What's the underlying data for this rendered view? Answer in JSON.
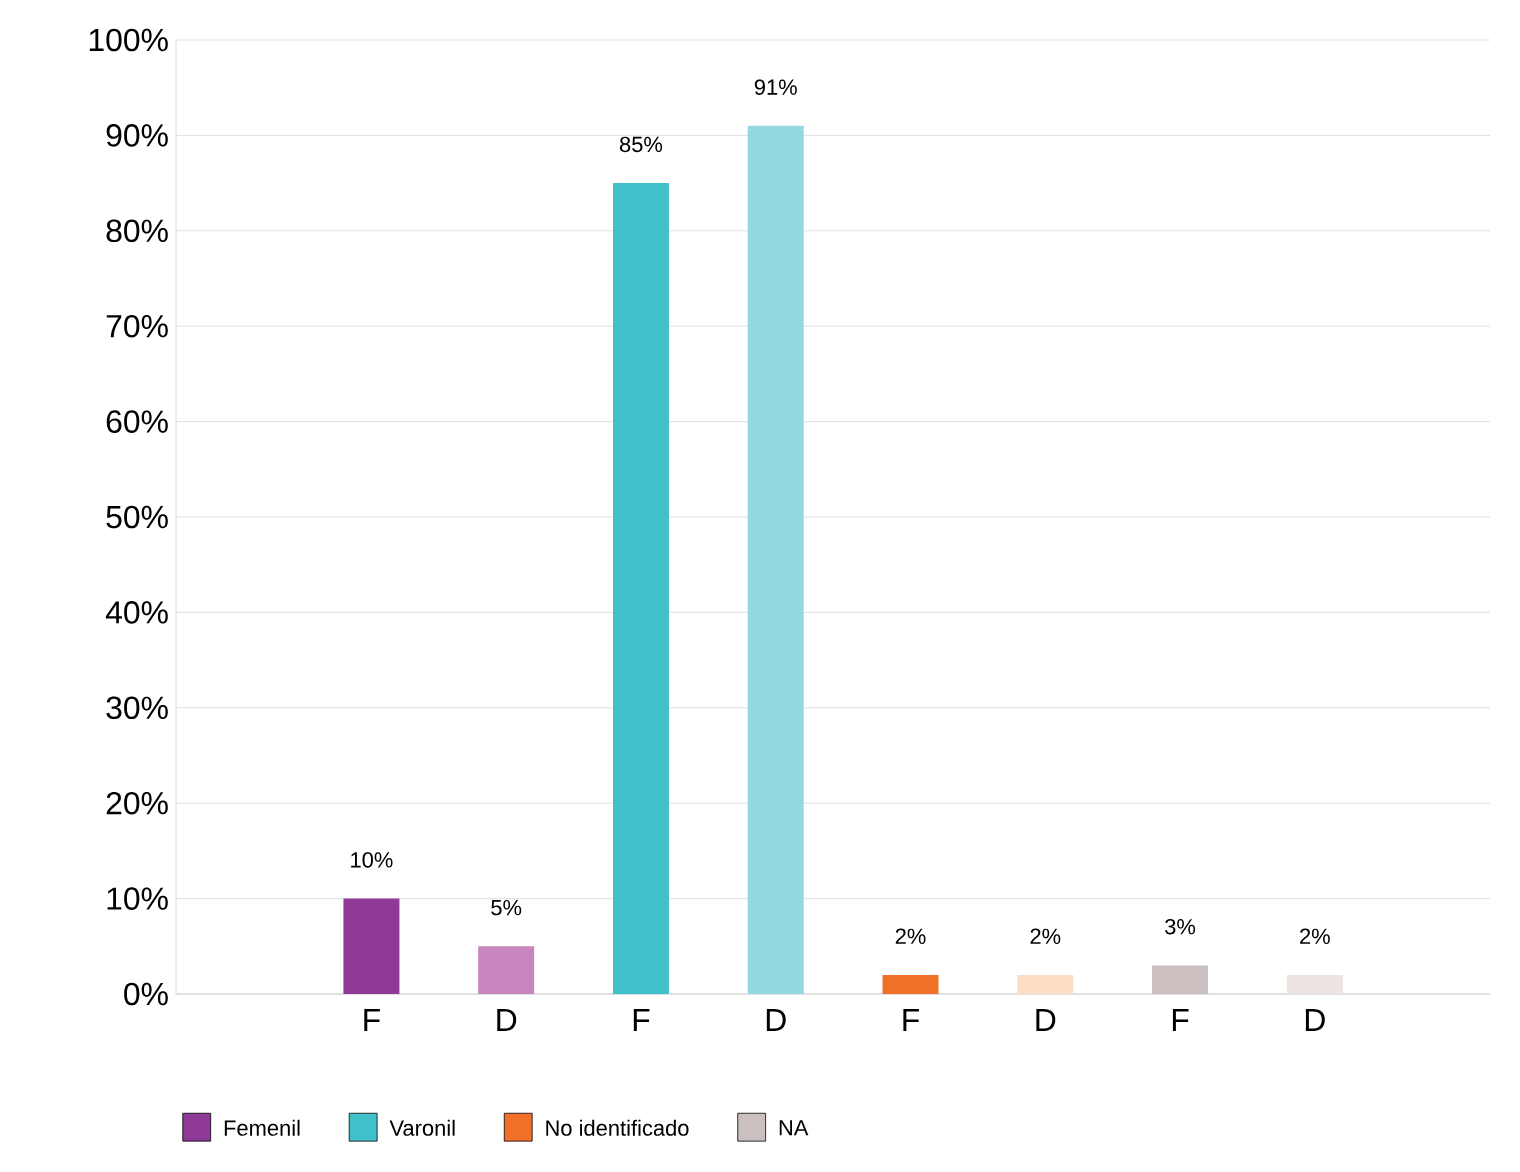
{
  "chart_data": {
    "type": "bar",
    "categories": [
      "F",
      "D",
      "F",
      "D",
      "F",
      "D",
      "F",
      "D"
    ],
    "series": [
      {
        "name": "Femenil",
        "color": "#8e3a96",
        "colors": [
          "#8e3a96",
          "#c985bd",
          null,
          null,
          null,
          null,
          null,
          null
        ],
        "values": [
          10,
          5,
          null,
          null,
          null,
          null,
          null,
          null
        ],
        "value_labels": [
          "10%",
          "5%",
          null,
          null,
          null,
          null,
          null,
          null
        ]
      },
      {
        "name": "Varonil",
        "color": "#40c1c9",
        "colors": [
          null,
          null,
          "#40c1c9",
          "#93d9df",
          null,
          null,
          null,
          null
        ],
        "values": [
          null,
          null,
          85,
          91,
          null,
          null,
          null,
          null
        ],
        "value_labels": [
          null,
          null,
          "85%",
          "91%",
          null,
          null,
          null,
          null
        ]
      },
      {
        "name": "No identificado",
        "color": "#f07028",
        "colors": [
          null,
          null,
          null,
          null,
          "#f07028",
          "#fddcc6",
          null,
          null
        ],
        "values": [
          null,
          null,
          null,
          null,
          2,
          2,
          null,
          null
        ],
        "value_labels": [
          null,
          null,
          null,
          null,
          "2%",
          "2%",
          null,
          null
        ]
      },
      {
        "name": "NA",
        "color": "#cbbfbf",
        "colors": [
          null,
          null,
          null,
          null,
          null,
          null,
          "#cbbfbf",
          "#ede5e3"
        ],
        "values": [
          null,
          null,
          null,
          null,
          null,
          null,
          3,
          2
        ],
        "value_labels": [
          null,
          null,
          null,
          null,
          null,
          null,
          "3%",
          "2%"
        ]
      }
    ],
    "ylim": [
      0,
      100
    ],
    "yticks": [
      {
        "value": 0,
        "label": "0%"
      },
      {
        "value": 10,
        "label": "10%"
      },
      {
        "value": 20,
        "label": "20%"
      },
      {
        "value": 30,
        "label": "30%"
      },
      {
        "value": 40,
        "label": "40%"
      },
      {
        "value": 50,
        "label": "50%"
      },
      {
        "value": 60,
        "label": "60%"
      },
      {
        "value": 70,
        "label": "70%"
      },
      {
        "value": 80,
        "label": "80%"
      },
      {
        "value": 90,
        "label": "90%"
      },
      {
        "value": 100,
        "label": "100%"
      }
    ],
    "grid": "y",
    "legend": "bottom"
  }
}
